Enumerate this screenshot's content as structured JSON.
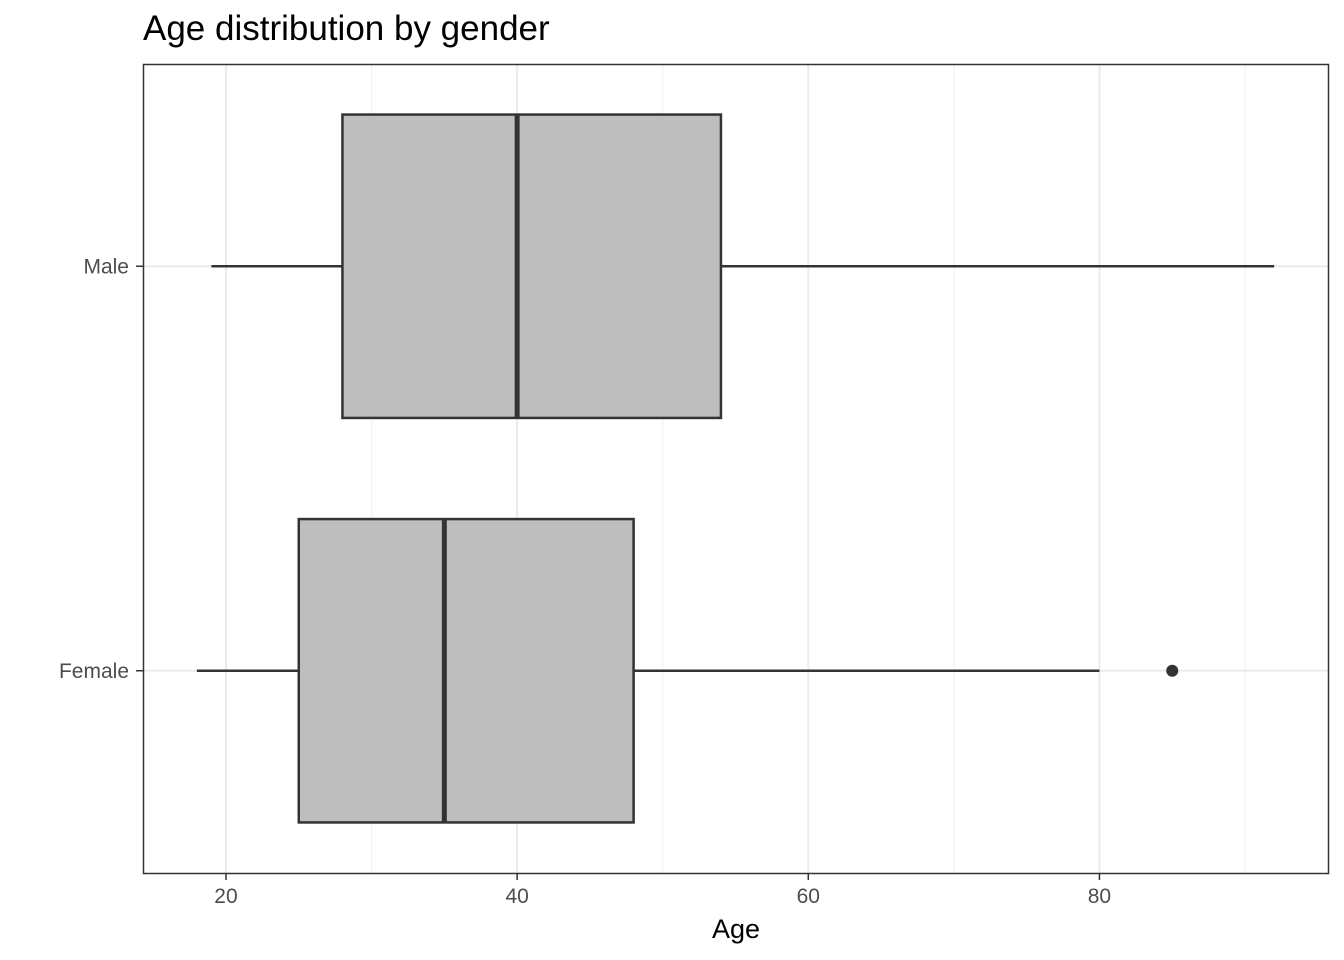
{
  "chart_data": {
    "type": "boxplot",
    "orientation": "horizontal",
    "title": "Age distribution by gender",
    "xlabel": "Age",
    "ylabel": "",
    "xlim": [
      14.3,
      95.7
    ],
    "x_ticks": [
      20,
      40,
      60,
      80
    ],
    "x_tick_labels": [
      "20",
      "40",
      "60",
      "80"
    ],
    "categories": [
      "Female",
      "Male"
    ],
    "series": [
      {
        "category": "Female",
        "whisker_low": 18,
        "q1": 25,
        "median": 35,
        "q3": 48,
        "whisker_high": 80,
        "outliers": [
          85
        ]
      },
      {
        "category": "Male",
        "whisker_low": 19,
        "q1": 28,
        "median": 40,
        "q3": 54,
        "whisker_high": 92,
        "outliers": []
      }
    ],
    "grid": true,
    "legend": "none",
    "colors": {
      "box_fill": "#bebebe",
      "box_stroke": "#333333",
      "grid_major": "#ebebeb",
      "grid_minor": "#f2f2f2",
      "panel_border": "#333333",
      "tick": "#333333"
    }
  }
}
